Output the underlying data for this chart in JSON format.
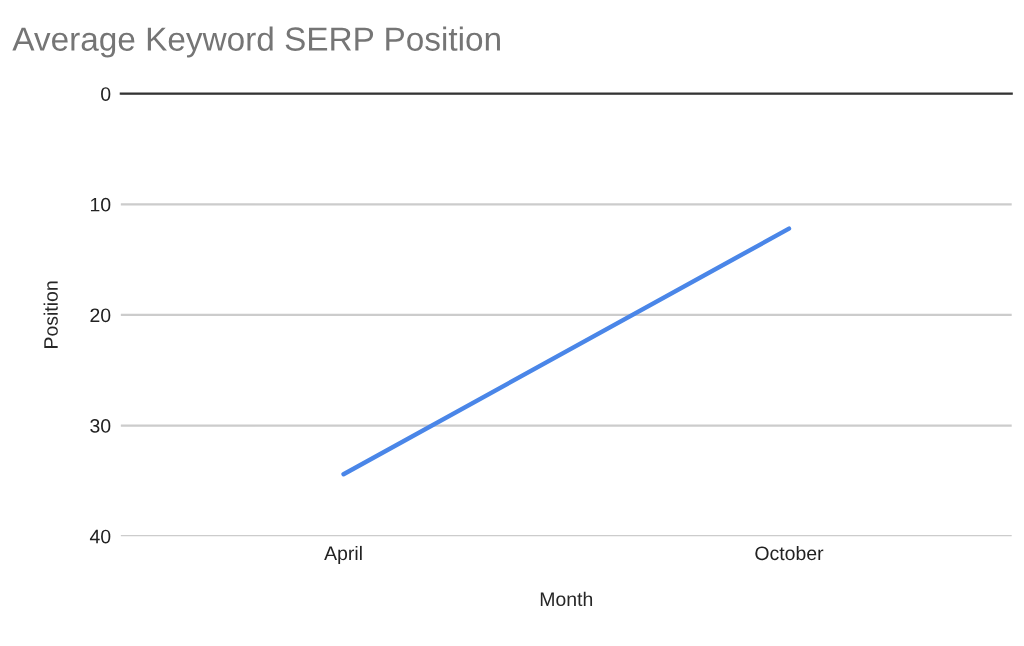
{
  "chart_data": {
    "type": "line",
    "title": "Average Keyword SERP Position",
    "xlabel": "Month",
    "ylabel": "Position",
    "categories": [
      "April",
      "October"
    ],
    "series": [
      {
        "color": "#4a86e8",
        "values": [
          34.4,
          12.2
        ]
      }
    ],
    "ylim": [
      40,
      0
    ],
    "yticks": [
      0,
      10,
      20,
      30,
      40
    ],
    "grid": "y"
  }
}
